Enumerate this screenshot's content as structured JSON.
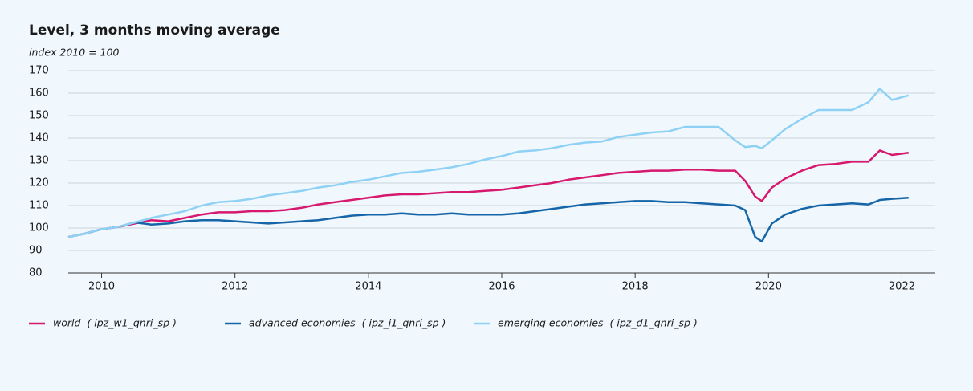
{
  "chart_data": {
    "type": "line",
    "title": "Level, 3 months moving average",
    "subtitle": "index 2010 = 100",
    "x": [
      2010.0,
      2010.25,
      2010.5,
      2010.75,
      2011.0,
      2011.25,
      2011.5,
      2011.75,
      2012.0,
      2012.25,
      2012.5,
      2012.75,
      2013.0,
      2013.25,
      2013.5,
      2013.75,
      2014.0,
      2014.25,
      2014.5,
      2014.75,
      2015.0,
      2015.25,
      2015.5,
      2015.75,
      2016.0,
      2016.25,
      2016.5,
      2016.75,
      2017.0,
      2017.25,
      2017.5,
      2017.75,
      2018.0,
      2018.25,
      2018.5,
      2018.75,
      2019.0,
      2019.25,
      2019.5,
      2019.75,
      2020.0,
      2020.15,
      2020.3,
      2020.4,
      2020.55,
      2020.75,
      2021.0,
      2021.25,
      2021.5,
      2021.75,
      2022.0,
      2022.17,
      2022.35,
      2022.6
    ],
    "series": [
      {
        "name": "world  ( ipz_w1_qnri_sp )",
        "color": "#d6186f",
        "values": [
          96,
          97.5,
          99.5,
          100.5,
          102,
          103.5,
          103,
          104.5,
          106,
          107,
          107,
          107.5,
          107.5,
          108,
          109,
          110.5,
          111.5,
          112.5,
          113.5,
          114.5,
          115,
          115,
          115.5,
          116,
          116,
          116.5,
          117,
          118,
          119,
          120,
          121.5,
          122.5,
          123.5,
          124.5,
          125,
          125.5,
          125.5,
          126,
          126,
          125.5,
          125.5,
          121,
          114,
          112,
          118,
          122,
          125.5,
          128,
          128.5,
          129.5,
          129.5,
          134.5,
          132.5,
          133.5
        ]
      },
      {
        "name": "advanced economies  ( ipz_i1_qnri_sp )",
        "color": "#1565a8",
        "values": [
          96,
          97.5,
          99.5,
          100.5,
          102.5,
          101.5,
          102,
          103,
          103.5,
          103.5,
          103,
          102.5,
          102,
          102.5,
          103,
          103.5,
          104.5,
          105.5,
          106,
          106,
          106.5,
          106,
          106,
          106.5,
          106,
          106,
          106,
          106.5,
          107.5,
          108.5,
          109.5,
          110.5,
          111,
          111.5,
          112,
          112,
          111.5,
          111.5,
          111,
          110.5,
          110,
          108,
          96,
          94,
          102,
          106,
          108.5,
          110,
          110.5,
          111,
          110.5,
          112.5,
          113,
          113.5
        ]
      },
      {
        "name": "emerging economies  ( ipz_d1_qnri_sp )",
        "color": "#8fd1f5",
        "values": [
          96,
          97.5,
          99.5,
          100.5,
          102.5,
          104.5,
          106,
          107.5,
          110,
          111.5,
          112,
          113,
          114.5,
          115.5,
          116.5,
          118,
          119,
          120.5,
          121.5,
          123,
          124.5,
          125,
          126,
          127,
          128.5,
          130.5,
          132,
          134,
          134.5,
          135.5,
          137,
          138,
          138.5,
          140.5,
          141.5,
          142.5,
          143,
          145,
          145,
          145,
          139,
          136,
          136.5,
          135.5,
          139,
          144,
          148.5,
          152.5,
          152.5,
          152.5,
          156,
          162,
          157,
          159
        ]
      }
    ],
    "xlim": [
      2010,
      2023
    ],
    "xticks": [
      {
        "value": 2010.5,
        "label": "2010"
      },
      {
        "value": 2012.5,
        "label": "2012"
      },
      {
        "value": 2014.5,
        "label": "2014"
      },
      {
        "value": 2016.5,
        "label": "2016"
      },
      {
        "value": 2018.5,
        "label": "2018"
      },
      {
        "value": 2020.5,
        "label": "2020"
      },
      {
        "value": 2022.5,
        "label": "2022"
      }
    ],
    "ylim": [
      80,
      170
    ],
    "yticks": [
      80,
      90,
      100,
      110,
      120,
      130,
      140,
      150,
      160,
      170
    ],
    "grid": true,
    "legend": "bottom"
  }
}
